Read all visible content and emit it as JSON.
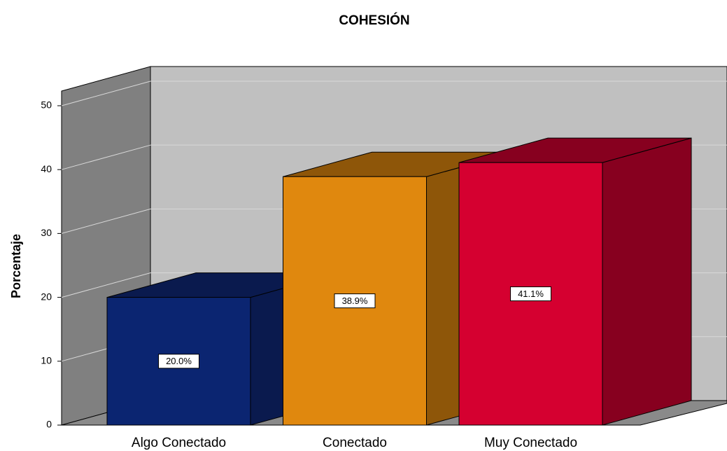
{
  "chart_data": {
    "type": "bar3d",
    "title": "COHESIÓN",
    "y_label": "Porcentaje",
    "categories": [
      "Algo Conectado",
      "Conectado",
      "Muy Conectado"
    ],
    "values": [
      20.0,
      38.9,
      41.1
    ],
    "value_labels": [
      "20.0%",
      "38.9%",
      "41.1%"
    ],
    "colors": [
      "#0b2571",
      "#e0880e",
      "#d50030"
    ],
    "side_colors": [
      "#0a1a4e",
      "#8e5609",
      "#87001f"
    ],
    "ylim": [
      0,
      52.3
    ],
    "yticks": [
      0,
      10,
      20,
      30,
      40,
      50
    ],
    "grid": true
  }
}
